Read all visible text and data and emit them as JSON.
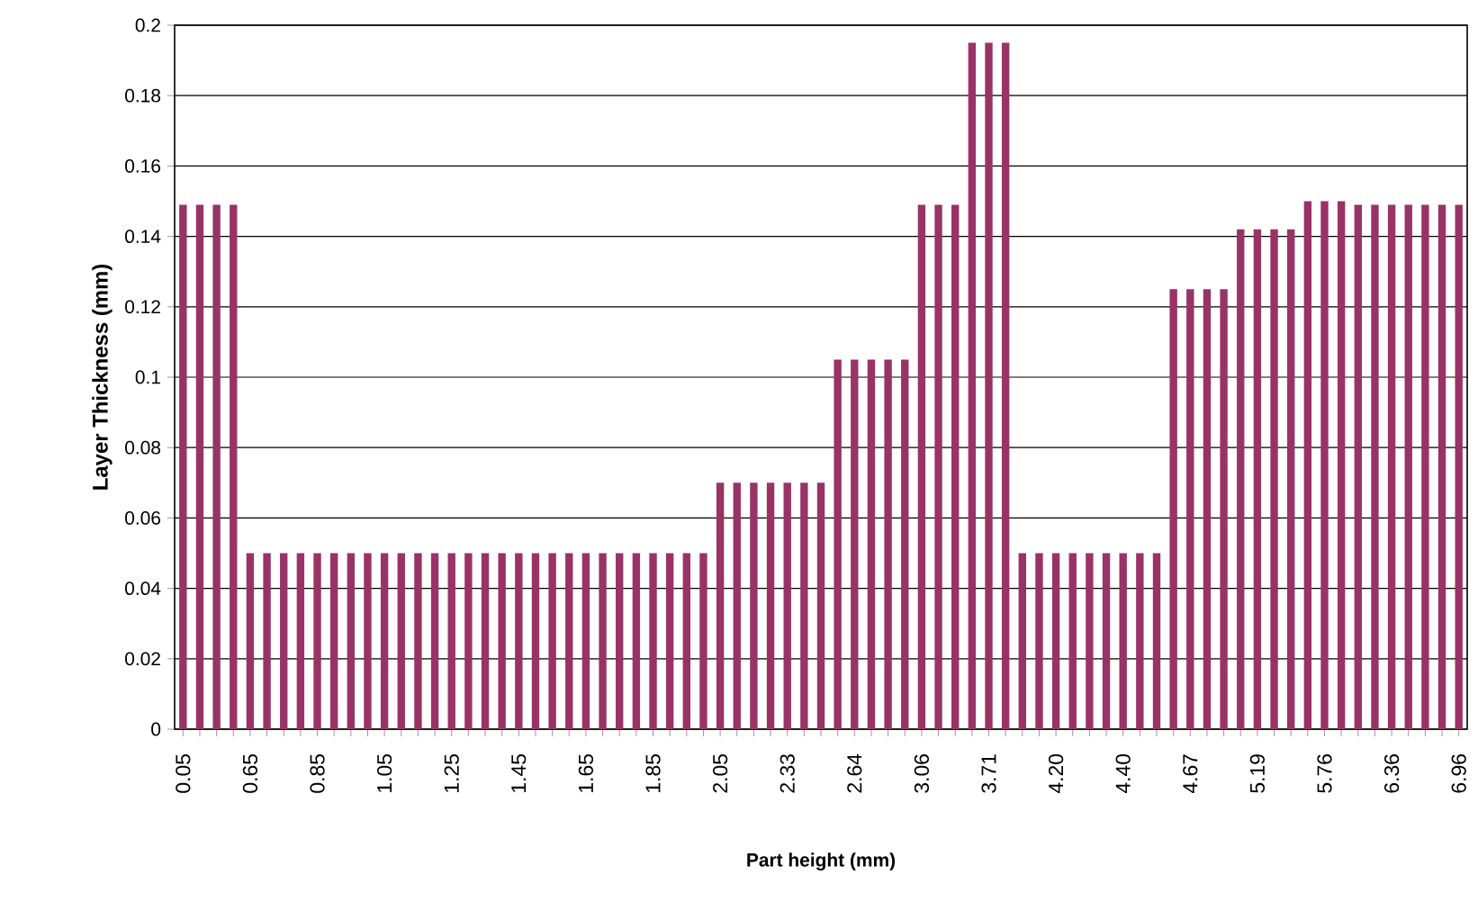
{
  "chart_data": {
    "type": "bar",
    "xlabel": "Part height (mm)",
    "ylabel": "Layer Thickness (mm)",
    "categories": [
      "0.05",
      null,
      null,
      null,
      "0.65",
      null,
      null,
      null,
      "0.85",
      null,
      null,
      null,
      "1.05",
      null,
      null,
      null,
      "1.25",
      null,
      null,
      null,
      "1.45",
      null,
      null,
      null,
      "1.65",
      null,
      null,
      null,
      "1.85",
      null,
      null,
      null,
      "2.05",
      null,
      null,
      null,
      "2.33",
      null,
      null,
      null,
      "2.64",
      null,
      null,
      null,
      "3.06",
      null,
      null,
      null,
      "3.71",
      null,
      null,
      null,
      "4.20",
      null,
      null,
      null,
      "4.40",
      null,
      null,
      null,
      "4.67",
      null,
      null,
      null,
      "5.19",
      null,
      null,
      null,
      "5.76",
      null,
      null,
      null,
      "6.36",
      null,
      null,
      null,
      "6.96"
    ],
    "values": [
      0.149,
      0.149,
      0.149,
      0.149,
      0.05,
      0.05,
      0.05,
      0.05,
      0.05,
      0.05,
      0.05,
      0.05,
      0.05,
      0.05,
      0.05,
      0.05,
      0.05,
      0.05,
      0.05,
      0.05,
      0.05,
      0.05,
      0.05,
      0.05,
      0.05,
      0.05,
      0.05,
      0.05,
      0.05,
      0.05,
      0.05,
      0.05,
      0.07,
      0.07,
      0.07,
      0.07,
      0.07,
      0.07,
      0.07,
      0.105,
      0.105,
      0.105,
      0.105,
      0.105,
      0.149,
      0.149,
      0.149,
      0.195,
      0.195,
      0.195,
      0.05,
      0.05,
      0.05,
      0.05,
      0.05,
      0.05,
      0.05,
      0.05,
      0.05,
      0.125,
      0.125,
      0.125,
      0.125,
      0.142,
      0.142,
      0.142,
      0.142,
      0.15,
      0.15,
      0.15,
      0.149,
      0.149,
      0.149,
      0.149,
      0.149,
      0.149,
      0.149
    ],
    "color": "#993366",
    "ylim": [
      0,
      0.2
    ],
    "yticks": [
      0,
      0.02,
      0.04,
      0.06,
      0.08,
      0.1,
      0.12,
      0.14,
      0.16,
      0.18,
      0.2
    ],
    "grid": "y"
  }
}
